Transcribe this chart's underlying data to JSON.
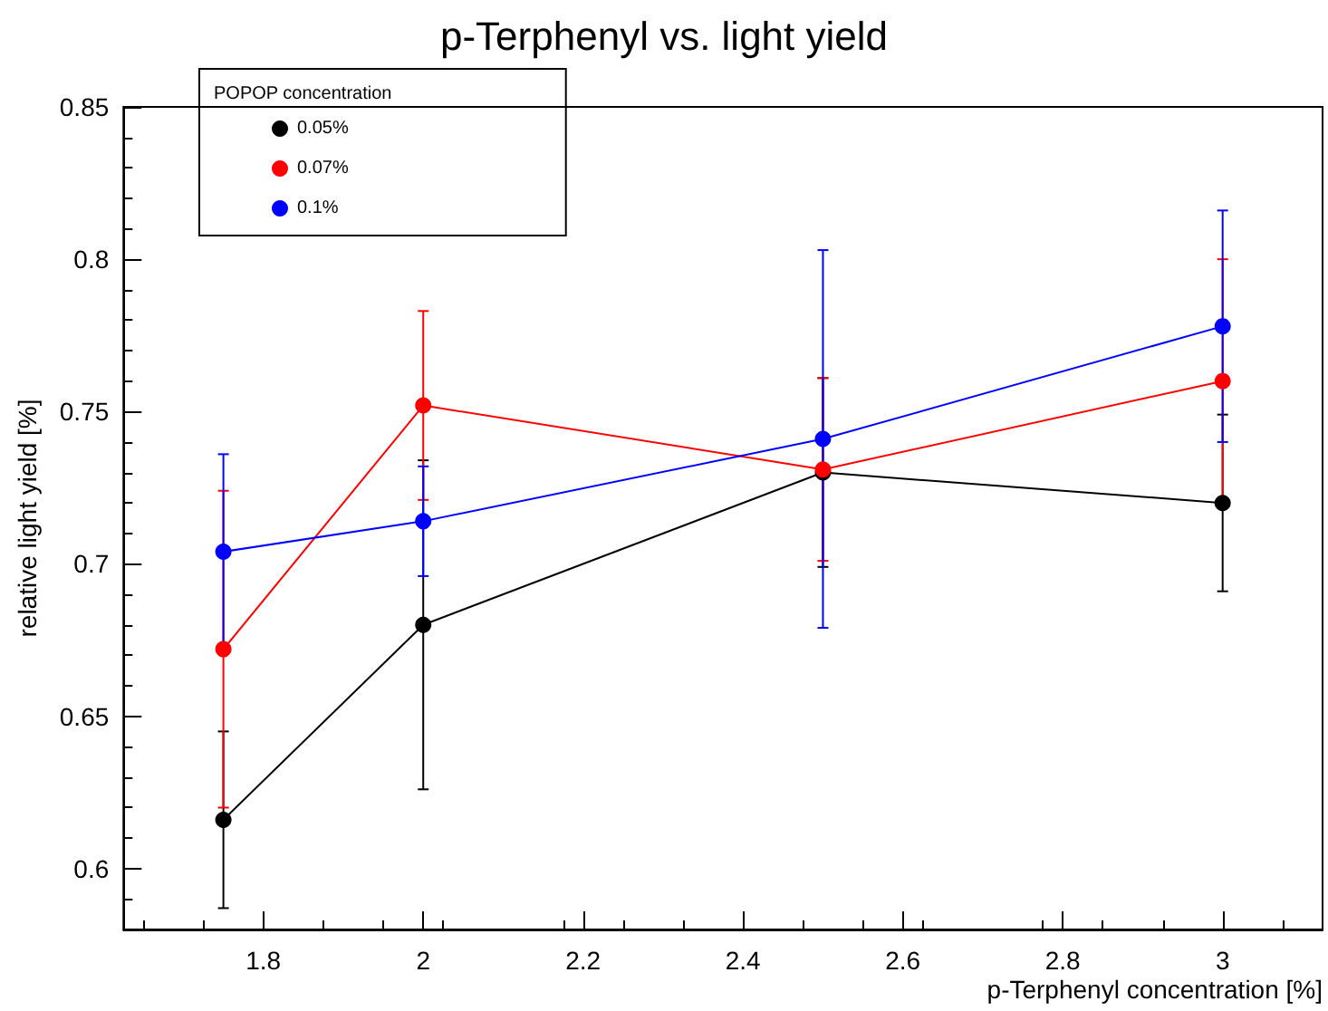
{
  "chart_data": {
    "type": "line",
    "title": "p-Terphenyl vs. light yield",
    "xlabel": "p-Terphenyl concentration [%]",
    "ylabel": "relative light yield [%]",
    "legend_title": "POPOP concentration",
    "legend": "top left",
    "marker": "circle",
    "line_style": "solid",
    "grid": false,
    "x": [
      1.75,
      2,
      2.5,
      3
    ],
    "xlim": [
      1.625,
      3.125
    ],
    "xticks": [
      1.8,
      2,
      2.2,
      2.4,
      2.6,
      2.8,
      3
    ],
    "ylim": [
      0.58,
      0.85
    ],
    "yticks": [
      0.6,
      0.65,
      0.7,
      0.75,
      0.8,
      0.85
    ],
    "series": [
      {
        "name": "0.05%",
        "color": "#000000",
        "values": [
          0.616,
          0.68,
          0.73,
          0.72
        ],
        "errors": [
          0.029,
          0.054,
          0.031,
          0.029
        ]
      },
      {
        "name": "0.07%",
        "color": "#ff0000",
        "values": [
          0.672,
          0.752,
          0.731,
          0.76
        ],
        "errors": [
          0.052,
          0.031,
          0.03,
          0.04
        ]
      },
      {
        "name": "0.1%",
        "color": "#0000ff",
        "values": [
          0.704,
          0.714,
          0.741,
          0.778
        ],
        "errors": [
          0.032,
          0.018,
          0.062,
          0.038
        ]
      }
    ]
  }
}
